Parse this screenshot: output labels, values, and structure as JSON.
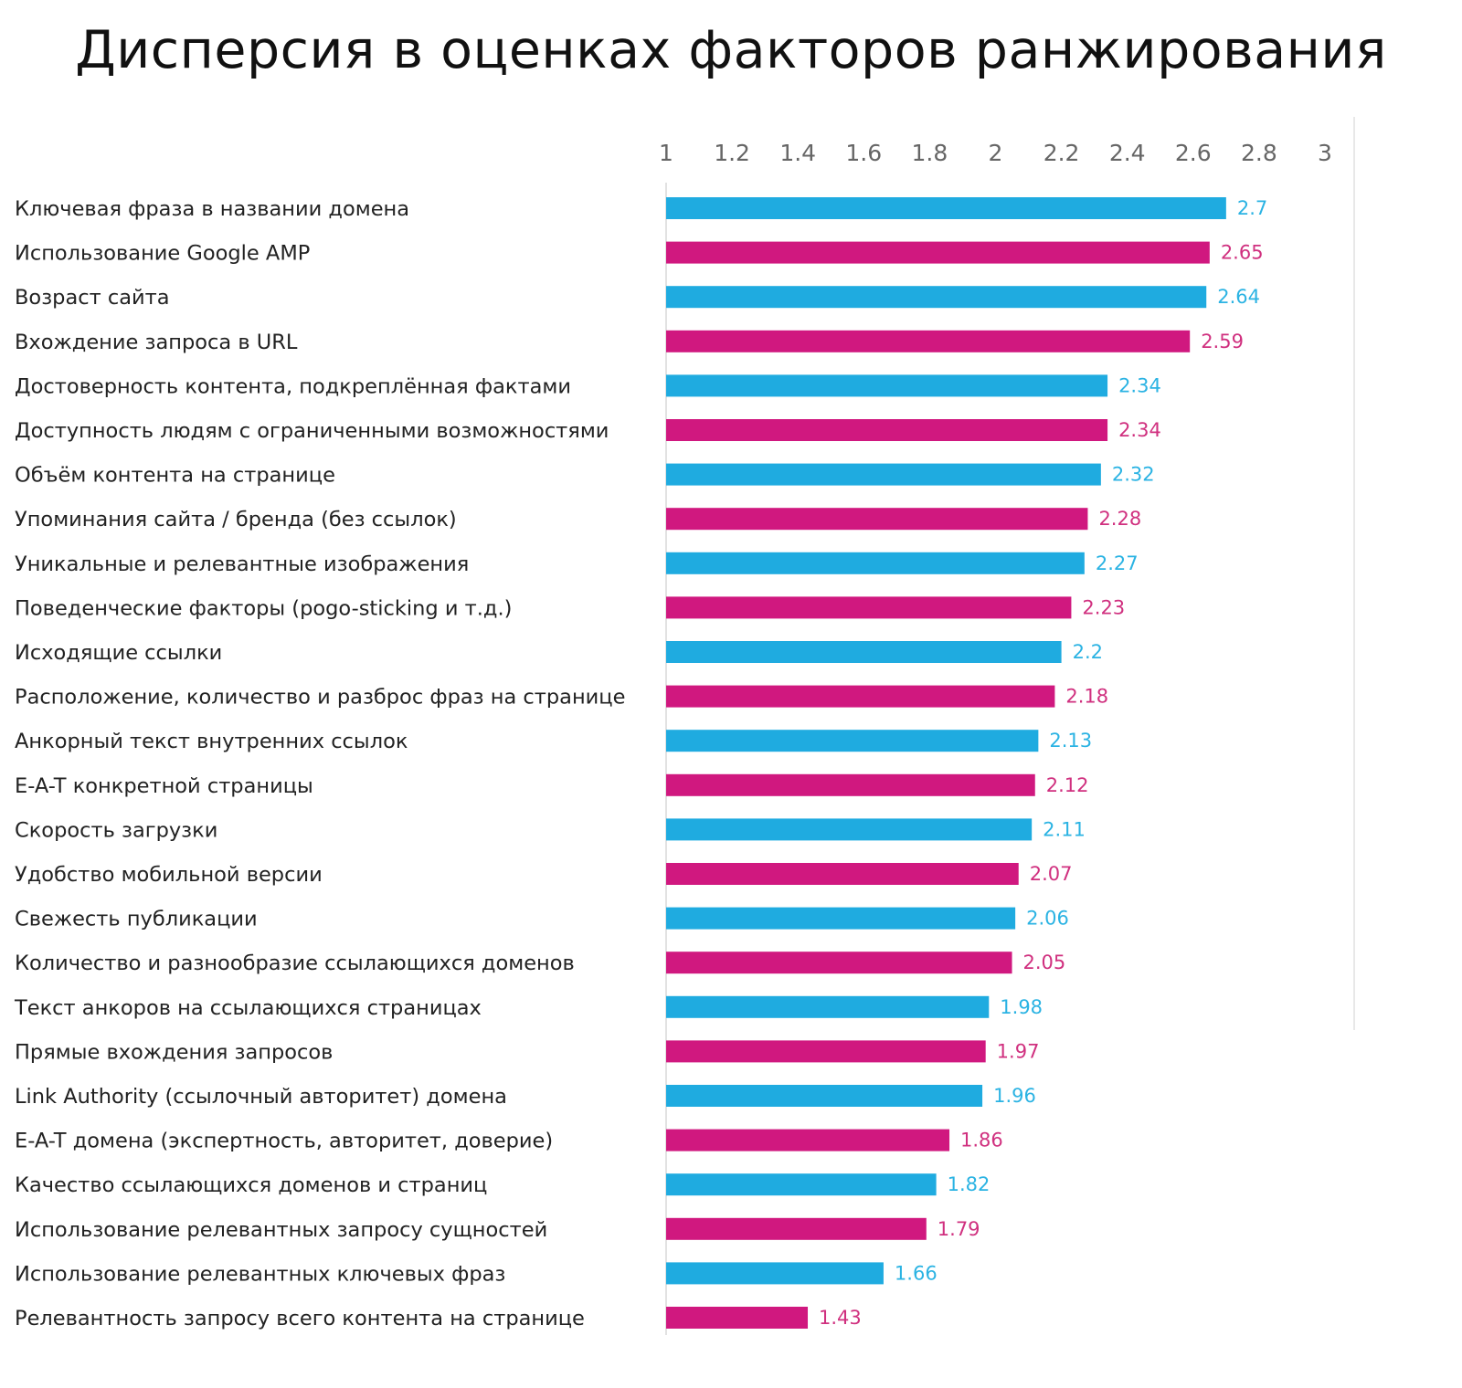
{
  "chart_data": {
    "type": "bar",
    "orientation": "horizontal",
    "title": "Дисперсия в оценках факторов ранжирования",
    "xlabel": "",
    "ylabel": "",
    "xlim": [
      1,
      3
    ],
    "x_ticks": [
      "1",
      "1.2",
      "1.4",
      "1.6",
      "1.8",
      "2",
      "2.2",
      "2.4",
      "2.6",
      "2.8",
      "3"
    ],
    "x_tick_values": [
      1,
      1.2,
      1.4,
      1.6,
      1.8,
      2,
      2.2,
      2.4,
      2.6,
      2.8,
      3
    ],
    "grid": false,
    "legend": "none",
    "colors": [
      "#1fabe0",
      "#d0187f"
    ],
    "value_label_colors": [
      "#2bb3e3",
      "#d0307f"
    ],
    "categories": [
      "Ключевая фраза в названии домена",
      "Использование Google AMP",
      "Возраст сайта",
      "Вхождение запроса в URL",
      "Достоверность контента, подкреплённая фактами",
      "Доступность  людям с ограниченными возможностями",
      "Объём контента на странице",
      "Упоминания сайта / бренда (без ссылок)",
      "Уникальные и релевантные изображения",
      "Поведенческие факторы (pogo-sticking и т.д.)",
      "Исходящие ссылки",
      "Расположение, количество и разброс фраз на странице",
      "Анкорный текст внутренних ссылок",
      "E-A-T конкретной страницы",
      "Скорость загрузки",
      "Удобство мобильной версии",
      "Свежесть публикации",
      "Количество и разнообразие ссылающихся доменов",
      "Текст анкоров на ссылающихся страницах",
      "Прямые вхождения запросов",
      "Link Authority (ссылочный авторитет) домена",
      "E-A-T домена (экспертность, авторитет, доверие)",
      "Качество ссылающихся доменов и страниц",
      "Использование релевантных запросу сущностей",
      "Использование релевантных ключевых фраз",
      "Релевантность запросу всего контента на странице"
    ],
    "values": [
      2.7,
      2.65,
      2.64,
      2.59,
      2.34,
      2.34,
      2.32,
      2.28,
      2.27,
      2.23,
      2.2,
      2.18,
      2.13,
      2.12,
      2.11,
      2.07,
      2.06,
      2.05,
      1.98,
      1.97,
      1.96,
      1.86,
      1.82,
      1.79,
      1.66,
      1.43
    ],
    "value_labels": [
      "2.7",
      "2.65",
      "2.64",
      "2.59",
      "2.34",
      "2.34",
      "2.32",
      "2.28",
      "2.27",
      "2.23",
      "2.2",
      "2.18",
      "2.13",
      "2.12",
      "2.11",
      "2.07",
      "2.06",
      "2.05",
      "1.98",
      "1.97",
      "1.96",
      "1.86",
      "1.82",
      "1.79",
      "1.66",
      "1.43"
    ]
  }
}
